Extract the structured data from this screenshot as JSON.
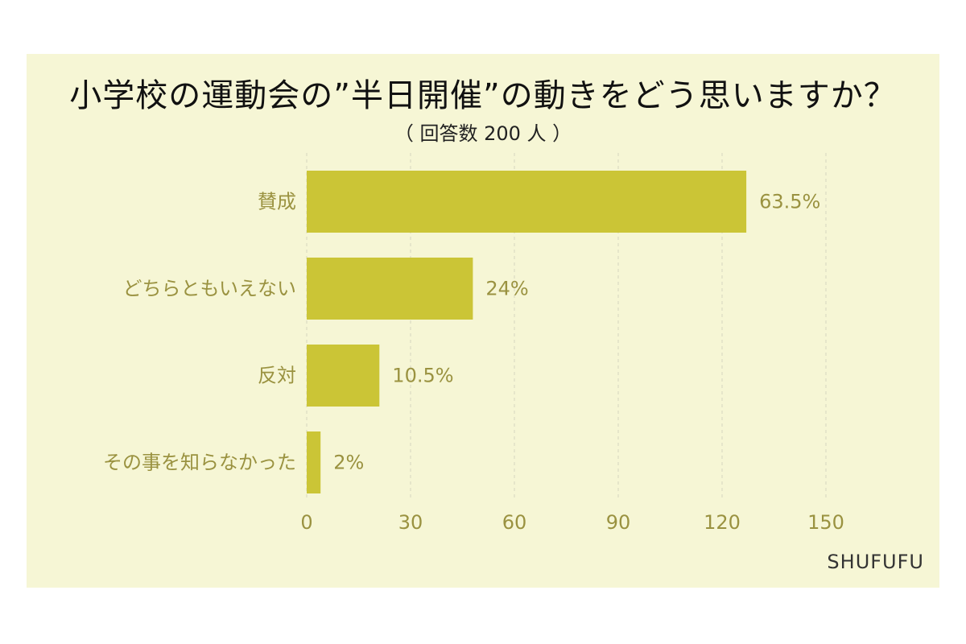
{
  "title": "小学校の運動会の”半日開催”の動きをどう思いますか？",
  "subtitle": "（ 回答数 200 人 ）",
  "brand": "SHUFUFU",
  "colors": {
    "background": "#f6f6d5",
    "bar": "#cbc536",
    "text": "#9a9240",
    "grid": "#d6d6c0"
  },
  "chart_data": {
    "type": "bar",
    "orientation": "horizontal",
    "categories": [
      "賛成",
      "どちらともいえない",
      "反対",
      "その事を知らなかった"
    ],
    "values": [
      127,
      48,
      21,
      4
    ],
    "data_labels": [
      "63.5%",
      "24%",
      "10.5%",
      "2%"
    ],
    "xlim": [
      0,
      150
    ],
    "xticks": [
      0,
      30,
      60,
      90,
      120,
      150
    ],
    "grid": true,
    "legend": "none"
  }
}
